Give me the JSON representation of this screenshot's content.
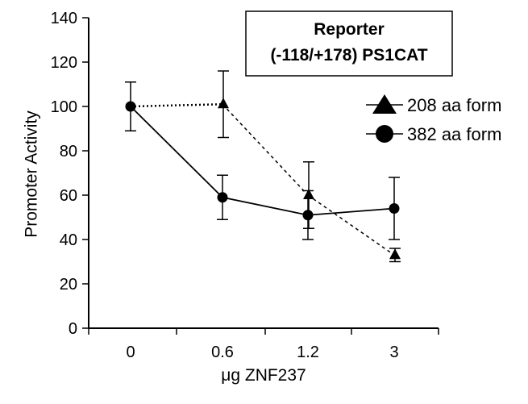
{
  "chart_data": {
    "type": "line",
    "categories": [
      "0",
      "0.6",
      "1.2",
      "3"
    ],
    "xlabel": "μg ZNF237",
    "ylabel": "Promoter Activity",
    "ylim": [
      0,
      140
    ],
    "yticks": [
      0,
      20,
      40,
      60,
      80,
      100,
      120,
      140
    ],
    "grid": false,
    "legend_position": "right",
    "annotation": [
      "Reporter",
      "(-118/+178) PS1CAT"
    ],
    "series": [
      {
        "name": "208 aa form",
        "marker": "triangle",
        "line_style": "dotted",
        "values": [
          100,
          101,
          60,
          33
        ],
        "errors": [
          11,
          15,
          15,
          3
        ]
      },
      {
        "name": "382 aa form",
        "marker": "circle",
        "line_style": "solid",
        "values": [
          100,
          59,
          51,
          54
        ],
        "errors": [
          11,
          10,
          11,
          14
        ]
      }
    ]
  }
}
